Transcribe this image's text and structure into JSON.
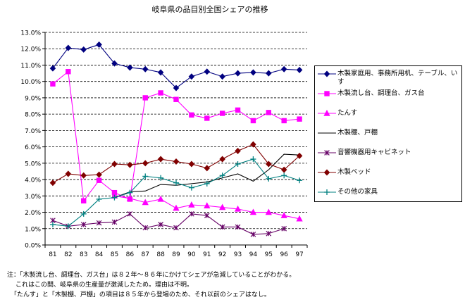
{
  "chart_data": {
    "type": "line",
    "title": "岐阜県の品目別全国シェアの推移",
    "categories": [
      "81",
      "82",
      "83",
      "84",
      "85",
      "86",
      "87",
      "88",
      "89",
      "90",
      "91",
      "92",
      "93",
      "94",
      "95",
      "96",
      "97"
    ],
    "ylim": [
      0,
      13
    ],
    "ytick_labels": [
      "0.0%",
      "1.0%",
      "2.0%",
      "3.0%",
      "4.0%",
      "5.0%",
      "6.0%",
      "7.0%",
      "8.0%",
      "9.0%",
      "10.0%",
      "11.0%",
      "12.0%",
      "13.0%"
    ],
    "series": [
      {
        "name": "木製家庭用、事務所用机、テーブル、いす",
        "color": "#000080",
        "marker": "diamond",
        "values": [
          10.8,
          12.05,
          11.95,
          12.25,
          11.1,
          10.85,
          10.75,
          10.55,
          9.6,
          10.3,
          10.6,
          10.3,
          10.5,
          10.55,
          10.5,
          10.75,
          10.7
        ]
      },
      {
        "name": "木製流し台、調理台、ガス台",
        "color": "#ff00ff",
        "marker": "square",
        "values": [
          9.85,
          10.6,
          2.7,
          3.95,
          3.2,
          2.8,
          9.0,
          9.3,
          8.9,
          7.95,
          7.75,
          8.05,
          8.25,
          7.6,
          8.1,
          7.6,
          7.7
        ]
      },
      {
        "name": "たんす",
        "color": "#ff00ff",
        "marker": "triangle",
        "values": [
          null,
          null,
          null,
          null,
          3.0,
          2.85,
          2.6,
          2.8,
          2.25,
          2.45,
          2.4,
          2.3,
          2.2,
          2.0,
          2.0,
          1.8,
          1.6
        ]
      },
      {
        "name": "木製棚、戸棚",
        "color": "#000000",
        "marker": "none",
        "values": [
          null,
          null,
          null,
          null,
          2.9,
          3.25,
          3.3,
          3.7,
          3.65,
          3.75,
          3.85,
          4.1,
          4.35,
          3.9,
          4.6,
          5.55,
          5.5
        ]
      },
      {
        "name": "音響機器用キャビネット",
        "color": "#660066",
        "marker": "star",
        "values": [
          1.5,
          1.15,
          1.25,
          1.35,
          1.4,
          1.9,
          1.05,
          1.25,
          1.05,
          1.9,
          1.8,
          1.1,
          1.1,
          0.65,
          0.7,
          1.0,
          null
        ]
      },
      {
        "name": "木製ベッド",
        "color": "#800000",
        "marker": "diamond",
        "values": [
          3.8,
          4.35,
          4.25,
          4.3,
          4.95,
          4.9,
          5.0,
          5.25,
          5.1,
          4.95,
          4.7,
          5.25,
          5.75,
          6.15,
          4.95,
          4.6,
          5.45
        ]
      },
      {
        "name": "その他の家具",
        "color": "#008080",
        "marker": "plus",
        "values": [
          1.25,
          1.15,
          1.9,
          2.8,
          2.9,
          3.2,
          4.2,
          4.1,
          3.8,
          3.5,
          3.75,
          4.25,
          4.95,
          5.25,
          4.05,
          4.25,
          3.95
        ]
      }
    ]
  },
  "notes": [
    "注：「木製流し台、調理台、ガス台」は８２年～８６年にかけてシェアが急減していることがわかる。",
    "これはこの間、岐阜県の生産量が激減したため。理由は不明。",
    "「たんす」と「木製棚、戸棚」の項目は８５年から登場のため、それ以前のシェアはなし。"
  ]
}
